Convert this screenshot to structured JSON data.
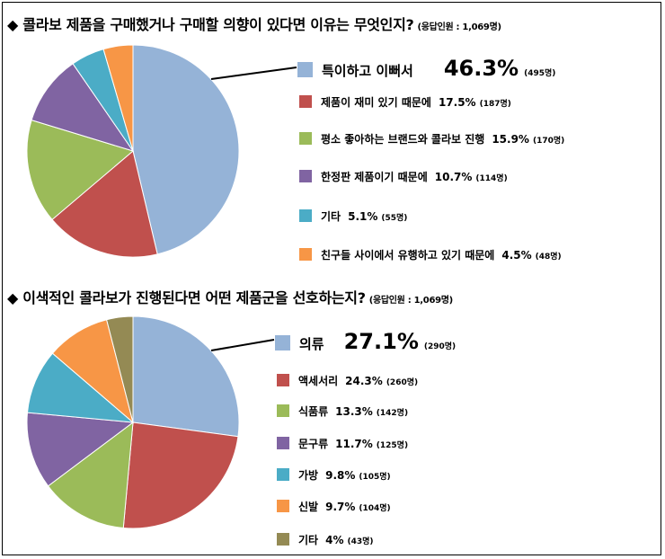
{
  "charts": [
    {
      "heading": "◆ 콜라보 제품을 구매했거나 구매할 의향이 있다면 이유는 무엇인지?",
      "note": "(응답인원 : 1,069명)"
    },
    {
      "heading": "◆ 이색적인 콜라보가 진행된다면 어떤 제품군을 선호하는지?",
      "note": "(응답인원 : 1,069명)"
    }
  ],
  "chart_data": [
    {
      "type": "pie",
      "title": "◆ 콜라보 제품을 구매했거나 구매할 의향이 있다면 이유는 무엇인지?",
      "subtitle": "(응답인원 : 1,069명)",
      "slices": [
        {
          "label": "특이하고 이뻐서",
          "value": 46.3,
          "pct_text": "46.3%",
          "count": "(495명)",
          "color": "#95B3D7"
        },
        {
          "label": "제품이 재미 있기 때문에",
          "value": 17.5,
          "pct_text": "17.5%",
          "count": "(187명)",
          "color": "#C0504D"
        },
        {
          "label": "평소 좋아하는 브랜드와 콜라보 진행",
          "value": 15.9,
          "pct_text": "15.9%",
          "count": "(170명)",
          "color": "#9BBB59"
        },
        {
          "label": "한정판 제품이기 때문에",
          "value": 10.7,
          "pct_text": "10.7%",
          "count": "(114명)",
          "color": "#8064A2"
        },
        {
          "label": "기타",
          "value": 5.1,
          "pct_text": "5.1%",
          "count": "(55명)",
          "color": "#4BACC6"
        },
        {
          "label": "친구들 사이에서 유행하고 있기 때문에",
          "value": 4.5,
          "pct_text": "4.5%",
          "count": "(48명)",
          "color": "#F79646"
        }
      ]
    },
    {
      "type": "pie",
      "title": "◆ 이색적인 콜라보가 진행된다면 어떤 제품군을 선호하는지?",
      "subtitle": "(응답인원 : 1,069명)",
      "slices": [
        {
          "label": "의류",
          "value": 27.1,
          "pct_text": "27.1%",
          "count": "(290명)",
          "color": "#95B3D7"
        },
        {
          "label": "액세서리",
          "value": 24.3,
          "pct_text": "24.3%",
          "count": "(260명)",
          "color": "#C0504D"
        },
        {
          "label": "식품류",
          "value": 13.3,
          "pct_text": "13.3%",
          "count": "(142명)",
          "color": "#9BBB59"
        },
        {
          "label": "문구류",
          "value": 11.7,
          "pct_text": "11.7%",
          "count": "(125명)",
          "color": "#8064A2"
        },
        {
          "label": "가방",
          "value": 9.8,
          "pct_text": "9.8%",
          "count": "(105명)",
          "color": "#4BACC6"
        },
        {
          "label": "신발",
          "value": 9.7,
          "pct_text": "9.7%",
          "count": "(104명)",
          "color": "#F79646"
        },
        {
          "label": "기타",
          "value": 4,
          "pct_text": "4%",
          "count": "(43명)",
          "color": "#948A54"
        }
      ]
    }
  ]
}
